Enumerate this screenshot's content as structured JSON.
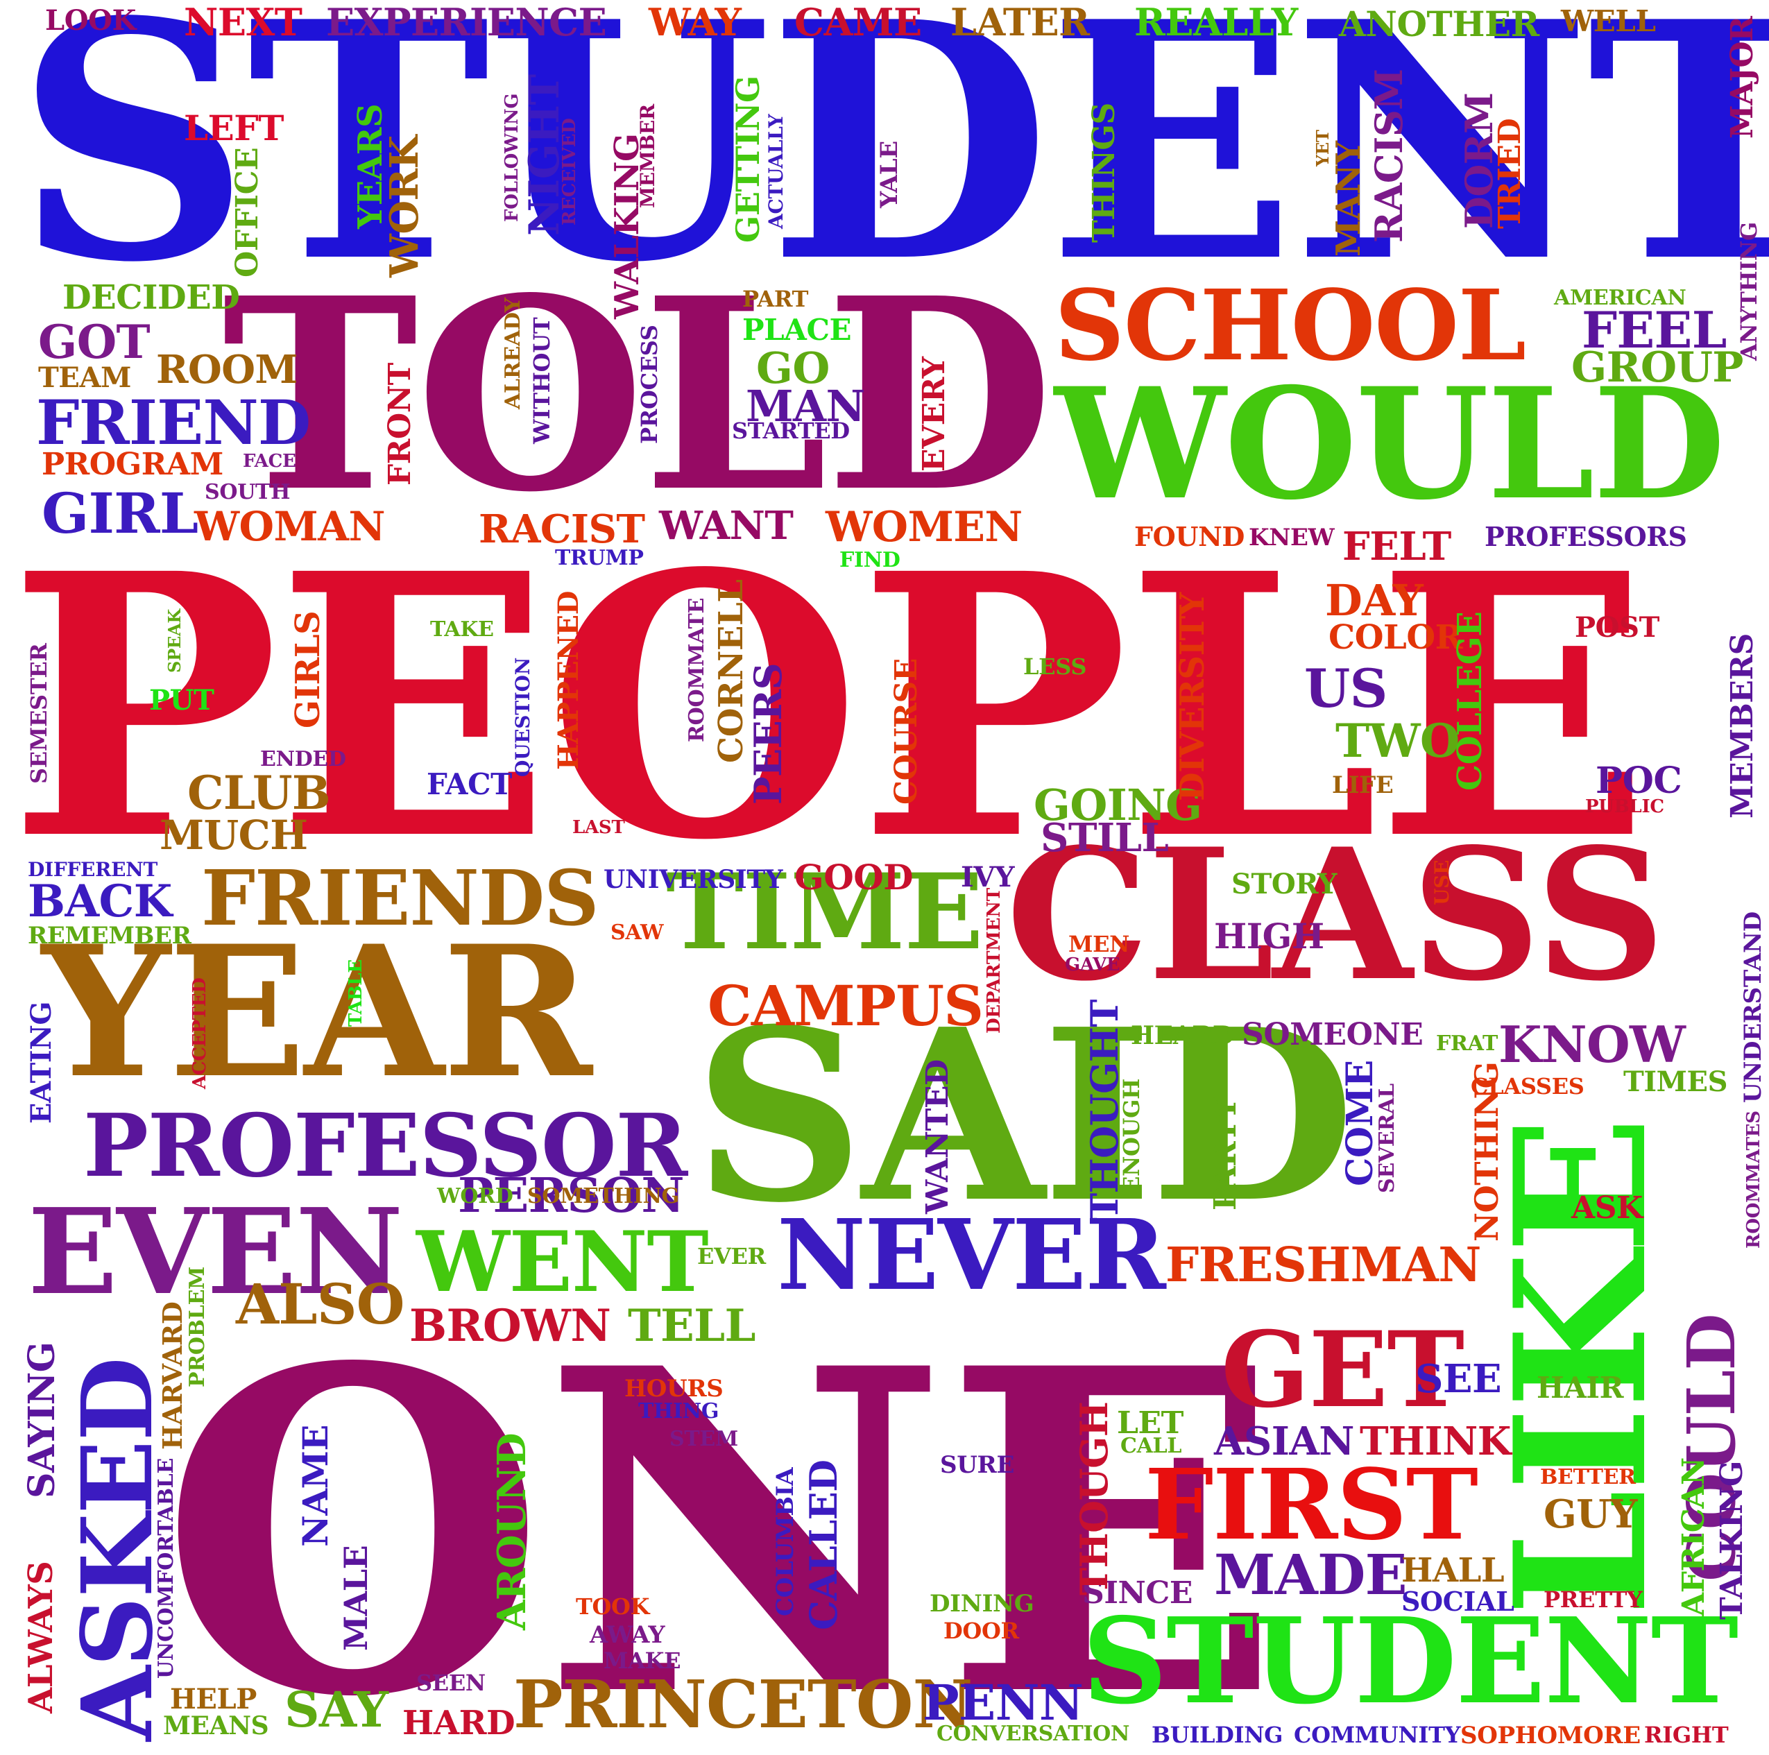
{
  "palette": {
    "blue": "#1f12d8",
    "red": "#dc0b2c",
    "magenta": "#960a64",
    "green": "#44c80e",
    "olive": "#5faa12",
    "brown": "#a0620a",
    "purple": "#5a159c",
    "orange": "#e23508",
    "lime": "#1fe315",
    "indigo": "#3b1bc0",
    "crimson": "#c8102e",
    "plum": "#7b1a8a"
  },
  "words": [
    {
      "text": "STUDENTS",
      "color": "#1f12d8"
    },
    {
      "text": "PEOPLE",
      "color": "#dc0b2c"
    },
    {
      "text": "ONE",
      "color": "#960a64"
    },
    {
      "text": "SAID",
      "color": "#5faa12"
    },
    {
      "text": "TOLD",
      "color": "#960a64"
    },
    {
      "text": "CLASS",
      "color": "#c8102e"
    },
    {
      "text": "YEAR",
      "color": "#a0620a"
    },
    {
      "text": "WOULD",
      "color": "#44c80e"
    },
    {
      "text": "LIKE",
      "color": "#1fe315"
    },
    {
      "text": "STUDENT",
      "color": "#1fe315"
    },
    {
      "text": "SCHOOL",
      "color": "#e23508"
    },
    {
      "text": "TIME",
      "color": "#5faa12"
    },
    {
      "text": "EVEN",
      "color": "#7b1a8a"
    },
    {
      "text": "PROFESSOR",
      "color": "#5a159c"
    },
    {
      "text": "ASKED",
      "color": "#3b1bc0"
    },
    {
      "text": "NEVER",
      "color": "#3b1bc0"
    },
    {
      "text": "FIRST",
      "color": "#e80f0f"
    },
    {
      "text": "GET",
      "color": "#c8102e"
    },
    {
      "text": "FRIENDS",
      "color": "#a0620a"
    },
    {
      "text": "WENT",
      "color": "#44c80e"
    },
    {
      "text": "COULD",
      "color": "#7b1a8a"
    },
    {
      "text": "PRINCETON",
      "color": "#a0620a"
    },
    {
      "text": "CAMPUS",
      "color": "#e23508"
    },
    {
      "text": "FRIEND",
      "color": "#3b1bc0"
    },
    {
      "text": "GIRL",
      "color": "#3b1bc0"
    },
    {
      "text": "WOMAN",
      "color": "#e23508"
    },
    {
      "text": "WOMEN",
      "color": "#e23508"
    },
    {
      "text": "RACIST",
      "color": "#e23508"
    },
    {
      "text": "WANT",
      "color": "#960a64"
    },
    {
      "text": "FRESHMAN",
      "color": "#e23508"
    },
    {
      "text": "BROWN",
      "color": "#c8102e"
    },
    {
      "text": "TELL",
      "color": "#5faa12"
    },
    {
      "text": "ALSO",
      "color": "#a0620a"
    },
    {
      "text": "PERSON",
      "color": "#5a159c"
    },
    {
      "text": "MADE",
      "color": "#5a159c"
    },
    {
      "text": "THINK",
      "color": "#c8102e"
    },
    {
      "text": "ASIAN",
      "color": "#5a159c"
    },
    {
      "text": "SAY",
      "color": "#5faa12"
    },
    {
      "text": "HARD",
      "color": "#c8102e"
    },
    {
      "text": "PENN",
      "color": "#3b1bc0"
    },
    {
      "text": "KNOW",
      "color": "#7b1a8a"
    },
    {
      "text": "NEXT",
      "color": "#dc0b2c"
    },
    {
      "text": "EXPERIENCE",
      "color": "#7b1a8a"
    },
    {
      "text": "WAY",
      "color": "#e23508"
    },
    {
      "text": "CAME",
      "color": "#c8102e"
    },
    {
      "text": "LATER",
      "color": "#a0620a"
    },
    {
      "text": "REALLY",
      "color": "#44c80e"
    },
    {
      "text": "ANOTHER",
      "color": "#5faa12"
    },
    {
      "text": "WELL",
      "color": "#a0620a"
    },
    {
      "text": "LOOK",
      "color": "#960a64"
    },
    {
      "text": "LEFT",
      "color": "#dc0b2c"
    },
    {
      "text": "MAJOR",
      "color": "#960a64"
    },
    {
      "text": "DECIDED",
      "color": "#5faa12"
    },
    {
      "text": "GOT",
      "color": "#7b1a8a"
    },
    {
      "text": "ROOM",
      "color": "#a0620a"
    },
    {
      "text": "TEAM",
      "color": "#a0620a"
    },
    {
      "text": "PROGRAM",
      "color": "#e23508"
    },
    {
      "text": "FACE",
      "color": "#7b1a8a"
    },
    {
      "text": "SOUTH",
      "color": "#7b1a8a"
    },
    {
      "text": "PART",
      "color": "#a0620a"
    },
    {
      "text": "PLACE",
      "color": "#1fe315"
    },
    {
      "text": "GO",
      "color": "#5faa12"
    },
    {
      "text": "MAN",
      "color": "#5a159c"
    },
    {
      "text": "STARTED",
      "color": "#5a159c"
    },
    {
      "text": "AMERICAN",
      "color": "#5faa12"
    },
    {
      "text": "FEEL",
      "color": "#5a159c"
    },
    {
      "text": "GROUP",
      "color": "#5faa12"
    },
    {
      "text": "FOUND",
      "color": "#e23508"
    },
    {
      "text": "KNEW",
      "color": "#960a64"
    },
    {
      "text": "FELT",
      "color": "#c8102e"
    },
    {
      "text": "PROFESSORS",
      "color": "#5a159c"
    },
    {
      "text": "TRUMP",
      "color": "#3b1bc0"
    },
    {
      "text": "FIND",
      "color": "#1fe315"
    },
    {
      "text": "DAY",
      "color": "#e23508"
    },
    {
      "text": "COLOR",
      "color": "#e23508"
    },
    {
      "text": "POST",
      "color": "#c8102e"
    },
    {
      "text": "US",
      "color": "#5a159c"
    },
    {
      "text": "TWO",
      "color": "#5faa12"
    },
    {
      "text": "LIFE",
      "color": "#a0620a"
    },
    {
      "text": "POC",
      "color": "#5a159c"
    },
    {
      "text": "PUBLIC",
      "color": "#c8102e"
    },
    {
      "text": "GOING",
      "color": "#5faa12"
    },
    {
      "text": "STILL",
      "color": "#7b1a8a"
    },
    {
      "text": "LESS",
      "color": "#5faa12"
    },
    {
      "text": "TAKE",
      "color": "#5faa12"
    },
    {
      "text": "PUT",
      "color": "#1fe315"
    },
    {
      "text": "ENDED",
      "color": "#7b1a8a"
    },
    {
      "text": "CLUB",
      "color": "#a0620a"
    },
    {
      "text": "MUCH",
      "color": "#a0620a"
    },
    {
      "text": "FACT",
      "color": "#3b1bc0"
    },
    {
      "text": "LAST",
      "color": "#c8102e"
    },
    {
      "text": "DIFFERENT",
      "color": "#3b1bc0"
    },
    {
      "text": "BACK",
      "color": "#3b1bc0"
    },
    {
      "text": "REMEMBER",
      "color": "#5faa12"
    },
    {
      "text": "UNIVERSITY",
      "color": "#3b1bc0"
    },
    {
      "text": "GOOD",
      "color": "#c8102e"
    },
    {
      "text": "IVY",
      "color": "#5a159c"
    },
    {
      "text": "STORY",
      "color": "#5faa12"
    },
    {
      "text": "HIGH",
      "color": "#7b1a8a"
    },
    {
      "text": "SAW",
      "color": "#e23508"
    },
    {
      "text": "MEN",
      "color": "#e23508"
    },
    {
      "text": "GAVE",
      "color": "#960a64"
    },
    {
      "text": "HEARD",
      "color": "#5faa12"
    },
    {
      "text": "SOMEONE",
      "color": "#7b1a8a"
    },
    {
      "text": "FRAT",
      "color": "#5faa12"
    },
    {
      "text": "CLASSES",
      "color": "#e23508"
    },
    {
      "text": "TIMES",
      "color": "#5faa12"
    },
    {
      "text": "WORD",
      "color": "#5faa12"
    },
    {
      "text": "SOMETHING",
      "color": "#a0620a"
    },
    {
      "text": "EVER",
      "color": "#5faa12"
    },
    {
      "text": "HOURS",
      "color": "#e23508"
    },
    {
      "text": "THING",
      "color": "#3b1bc0"
    },
    {
      "text": "STEM",
      "color": "#7b1a8a"
    },
    {
      "text": "SEE",
      "color": "#3b1bc0"
    },
    {
      "text": "HAIR",
      "color": "#5faa12"
    },
    {
      "text": "ASK",
      "color": "#c8102e"
    },
    {
      "text": "LET",
      "color": "#5faa12"
    },
    {
      "text": "CALL",
      "color": "#5faa12"
    },
    {
      "text": "SURE",
      "color": "#5a159c"
    },
    {
      "text": "BETTER",
      "color": "#e23508"
    },
    {
      "text": "GUY",
      "color": "#a0620a"
    },
    {
      "text": "HALL",
      "color": "#a0620a"
    },
    {
      "text": "SINCE",
      "color": "#7b1a8a"
    },
    {
      "text": "SOCIAL",
      "color": "#3b1bc0"
    },
    {
      "text": "PRETTY",
      "color": "#c8102e"
    },
    {
      "text": "DINING",
      "color": "#5faa12"
    },
    {
      "text": "DOOR",
      "color": "#e23508"
    },
    {
      "text": "TOOK",
      "color": "#e23508"
    },
    {
      "text": "AWAY",
      "color": "#7b1a8a"
    },
    {
      "text": "MAKE",
      "color": "#7b1a8a"
    },
    {
      "text": "SEEN",
      "color": "#7b1a8a"
    },
    {
      "text": "HELP",
      "color": "#a0620a"
    },
    {
      "text": "MEANS",
      "color": "#5faa12"
    },
    {
      "text": "CONVERSATION",
      "color": "#5faa12"
    },
    {
      "text": "BUILDING",
      "color": "#3b1bc0"
    },
    {
      "text": "COMMUNITY",
      "color": "#3b1bc0"
    },
    {
      "text": "SOPHOMORE",
      "color": "#e23508"
    },
    {
      "text": "RIGHT",
      "color": "#c8102e"
    },
    {
      "text": "YEARS",
      "color": "#44c80e"
    },
    {
      "text": "WORK",
      "color": "#a0620a"
    },
    {
      "text": "OFFICE",
      "color": "#5faa12"
    },
    {
      "text": "FOLLOWING",
      "color": "#7b1a8a"
    },
    {
      "text": "NIGHT",
      "color": "#3b1bc0"
    },
    {
      "text": "RECEIVED",
      "color": "#7b1a8a"
    },
    {
      "text": "WALKING",
      "color": "#960a64"
    },
    {
      "text": "MEMBER",
      "color": "#960a64"
    },
    {
      "text": "GETTING",
      "color": "#44c80e"
    },
    {
      "text": "ACTUALLY",
      "color": "#3b1bc0"
    },
    {
      "text": "YALE",
      "color": "#7b1a8a"
    },
    {
      "text": "THINGS",
      "color": "#5faa12"
    },
    {
      "text": "YET",
      "color": "#a0620a"
    },
    {
      "text": "MANY",
      "color": "#a0620a"
    },
    {
      "text": "RACISM",
      "color": "#7b1a8a"
    },
    {
      "text": "DORM",
      "color": "#7b1a8a"
    },
    {
      "text": "TRIED",
      "color": "#e23508"
    },
    {
      "text": "ANYTHING",
      "color": "#7b1a8a"
    },
    {
      "text": "ALREADY",
      "color": "#a0620a"
    },
    {
      "text": "WITHOUT",
      "color": "#5a159c"
    },
    {
      "text": "FRONT",
      "color": "#c8102e"
    },
    {
      "text": "PROCESS",
      "color": "#5a159c"
    },
    {
      "text": "EVERY",
      "color": "#c8102e"
    },
    {
      "text": "SEMESTER",
      "color": "#7b1a8a"
    },
    {
      "text": "SPEAK",
      "color": "#5faa12"
    },
    {
      "text": "GIRLS",
      "color": "#e23508"
    },
    {
      "text": "QUESTION",
      "color": "#3b1bc0"
    },
    {
      "text": "HAPPENED",
      "color": "#e23508"
    },
    {
      "text": "ROOMMATE",
      "color": "#7b1a8a"
    },
    {
      "text": "CORNELL",
      "color": "#a0620a"
    },
    {
      "text": "PEERS",
      "color": "#5a159c"
    },
    {
      "text": "COURSE",
      "color": "#e23508"
    },
    {
      "text": "DIVERSITY",
      "color": "#e23508"
    },
    {
      "text": "COLLEGE",
      "color": "#44c80e"
    },
    {
      "text": "MEMBERS",
      "color": "#5a159c"
    },
    {
      "text": "USE",
      "color": "#e23508"
    },
    {
      "text": "UNDERSTAND",
      "color": "#5a159c"
    },
    {
      "text": "ROOMMATES",
      "color": "#7b1a8a"
    },
    {
      "text": "TABLE",
      "color": "#1fe315"
    },
    {
      "text": "ACCEPTED",
      "color": "#c8102e"
    },
    {
      "text": "DEPARTMENT",
      "color": "#c8102e"
    },
    {
      "text": "EATING",
      "color": "#3b1bc0"
    },
    {
      "text": "WANTED",
      "color": "#5a159c"
    },
    {
      "text": "THOUGHT",
      "color": "#3b1bc0"
    },
    {
      "text": "ENOUGH",
      "color": "#5faa12"
    },
    {
      "text": "PARTY",
      "color": "#5faa12"
    },
    {
      "text": "COME",
      "color": "#3b1bc0"
    },
    {
      "text": "SEVERAL",
      "color": "#7b1a8a"
    },
    {
      "text": "NOTHING",
      "color": "#e23508"
    },
    {
      "text": "AFRICAN",
      "color": "#44c80e"
    },
    {
      "text": "TALKING",
      "color": "#5a159c"
    },
    {
      "text": "THOUGH",
      "color": "#c8102e"
    },
    {
      "text": "CALLED",
      "color": "#3b1bc0"
    },
    {
      "text": "COLUMBIA",
      "color": "#3b1bc0"
    },
    {
      "text": "AROUND",
      "color": "#44c80e"
    },
    {
      "text": "NAME",
      "color": "#3b1bc0"
    },
    {
      "text": "MALE",
      "color": "#5a159c"
    },
    {
      "text": "ALWAYS",
      "color": "#c8102e"
    },
    {
      "text": "SAYING",
      "color": "#5a159c"
    },
    {
      "text": "UNCOMFORTABLE",
      "color": "#5a159c"
    },
    {
      "text": "HARVARD",
      "color": "#a0620a"
    },
    {
      "text": "PROBLEM",
      "color": "#5faa12"
    }
  ]
}
